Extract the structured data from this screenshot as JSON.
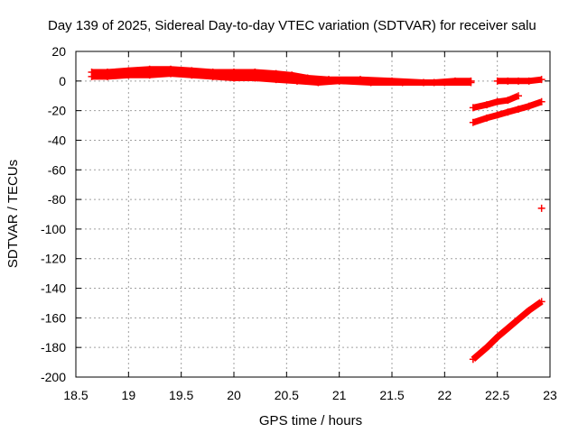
{
  "chart_data": {
    "type": "scatter",
    "title": "Day 139 of 2025, Sidereal Day-to-day VTEC variation (SDTVAR) for receiver salu",
    "xlabel": "GPS time / hours",
    "ylabel": "SDTVAR / TECUs",
    "xlim": [
      18.5,
      23
    ],
    "ylim": [
      -200,
      20
    ],
    "x_ticks": [
      "18.5",
      "19",
      "19.5",
      "20",
      "20.5",
      "21",
      "21.5",
      "22",
      "22.5",
      "23"
    ],
    "y_ticks": [
      "20",
      "0",
      "-20",
      "-40",
      "-60",
      "-80",
      "-100",
      "-120",
      "-140",
      "-160",
      "-180",
      "-200"
    ],
    "grid": true,
    "legend": "none",
    "marker": "plus",
    "color": "#ff0000",
    "series": [
      {
        "x": [
          18.65,
          18.8,
          19.0,
          19.2,
          19.4,
          19.6,
          19.8,
          20.0,
          20.2,
          20.4,
          20.55,
          20.7,
          20.9,
          21.2,
          21.5,
          21.8,
          22.0,
          22.25
        ],
        "y": [
          6,
          6,
          7,
          8,
          8,
          7,
          6,
          6,
          6,
          5,
          4,
          2,
          1,
          1,
          0,
          -1,
          -1,
          -1
        ]
      },
      {
        "x": [
          18.65,
          18.8,
          19.0,
          19.2,
          19.4,
          19.6,
          19.8,
          20.0,
          20.2,
          20.4,
          20.6,
          20.8,
          21.0,
          21.3,
          21.6,
          21.9,
          22.1,
          22.25
        ],
        "y": [
          3,
          3,
          4,
          4,
          5,
          4,
          3,
          2,
          2,
          1,
          0,
          -1,
          0,
          -1,
          -1,
          -1,
          0,
          0
        ]
      },
      {
        "x": [
          22.27,
          22.4,
          22.5,
          22.6,
          22.7
        ],
        "y": [
          -18,
          -16,
          -14,
          -13,
          -10
        ]
      },
      {
        "x": [
          22.27,
          22.4,
          22.5,
          22.6,
          22.7,
          22.8,
          22.92
        ],
        "y": [
          -28,
          -25,
          -23,
          -21,
          -19,
          -17,
          -14
        ]
      },
      {
        "x": [
          22.5,
          22.6,
          22.7,
          22.8,
          22.92
        ],
        "y": [
          0,
          0,
          0,
          0,
          1
        ]
      },
      {
        "x": [
          22.92
        ],
        "y": [
          -86
        ]
      },
      {
        "x": [
          22.27,
          22.4,
          22.5,
          22.6,
          22.7,
          22.8,
          22.92
        ],
        "y": [
          -188,
          -180,
          -173,
          -167,
          -161,
          -155,
          -149
        ]
      }
    ]
  }
}
